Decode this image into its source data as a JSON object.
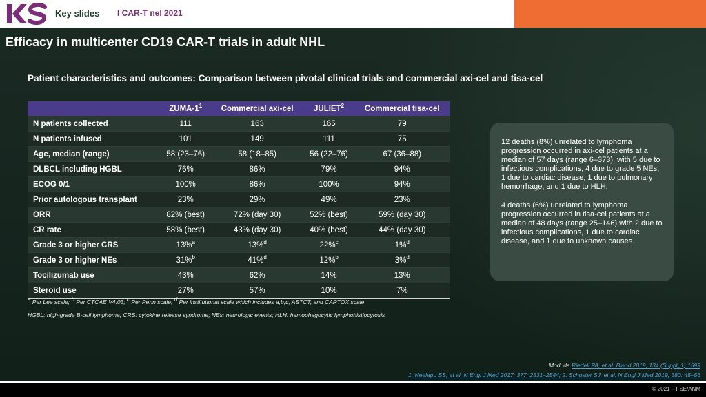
{
  "header": {
    "key_slides": "Key slides",
    "topic": "I CAR-T nel 2021",
    "orange_color": "#ef6c32"
  },
  "title": "Efficacy in multicenter CD19 CAR-T trials in adult NHL",
  "section_title": "Patient characteristics and outcomes: Comparison between pivotal clinical trials and commercial axi-cel and tisa-cel",
  "table": {
    "columns": [
      {
        "text": "",
        "sup": ""
      },
      {
        "text": "ZUMA-1",
        "sup": "1"
      },
      {
        "text": "Commercial axi-cel",
        "sup": ""
      },
      {
        "text": "JULIET",
        "sup": "2"
      },
      {
        "text": "Commercial tisa-cel",
        "sup": ""
      }
    ],
    "rows": [
      {
        "label": "N patients collected",
        "cells": [
          {
            "v": "111",
            "s": ""
          },
          {
            "v": "163",
            "s": ""
          },
          {
            "v": "165",
            "s": ""
          },
          {
            "v": "79",
            "s": ""
          }
        ]
      },
      {
        "label": "N patients infused",
        "cells": [
          {
            "v": "101",
            "s": ""
          },
          {
            "v": "149",
            "s": ""
          },
          {
            "v": "111",
            "s": ""
          },
          {
            "v": "75",
            "s": ""
          }
        ]
      },
      {
        "label": "Age, median (range)",
        "cells": [
          {
            "v": "58 (23–76)",
            "s": ""
          },
          {
            "v": "58 (18–85)",
            "s": ""
          },
          {
            "v": "56 (22–76)",
            "s": ""
          },
          {
            "v": "67 (36–88)",
            "s": ""
          }
        ]
      },
      {
        "label": "DLBCL including HGBL",
        "cells": [
          {
            "v": "76%",
            "s": ""
          },
          {
            "v": "86%",
            "s": ""
          },
          {
            "v": "79%",
            "s": ""
          },
          {
            "v": "94%",
            "s": ""
          }
        ]
      },
      {
        "label": "ECOG 0/1",
        "cells": [
          {
            "v": "100%",
            "s": ""
          },
          {
            "v": "86%",
            "s": ""
          },
          {
            "v": "100%",
            "s": ""
          },
          {
            "v": "94%",
            "s": ""
          }
        ]
      },
      {
        "label": "Prior autologous transplant",
        "cells": [
          {
            "v": "23%",
            "s": ""
          },
          {
            "v": "29%",
            "s": ""
          },
          {
            "v": "49%",
            "s": ""
          },
          {
            "v": "23%",
            "s": ""
          }
        ]
      },
      {
        "label": "ORR",
        "cells": [
          {
            "v": "82% (best)",
            "s": ""
          },
          {
            "v": "72% (day 30)",
            "s": ""
          },
          {
            "v": "52% (best)",
            "s": ""
          },
          {
            "v": "59% (day 30)",
            "s": ""
          }
        ]
      },
      {
        "label": "CR rate",
        "cells": [
          {
            "v": "58% (best)",
            "s": ""
          },
          {
            "v": "43% (day 30)",
            "s": ""
          },
          {
            "v": "40% (best)",
            "s": ""
          },
          {
            "v": "44% (day 30)",
            "s": ""
          }
        ]
      },
      {
        "label": "Grade 3 or higher CRS",
        "cells": [
          {
            "v": "13%",
            "s": "a"
          },
          {
            "v": "13%",
            "s": "d"
          },
          {
            "v": "22%",
            "s": "c"
          },
          {
            "v": "1%",
            "s": "d"
          }
        ]
      },
      {
        "label": "Grade 3 or higher NEs",
        "cells": [
          {
            "v": "31%",
            "s": "b"
          },
          {
            "v": "41%",
            "s": "d"
          },
          {
            "v": "12%",
            "s": "b"
          },
          {
            "v": "3%",
            "s": "d"
          }
        ]
      },
      {
        "label": "Tocilizumab use",
        "cells": [
          {
            "v": "43%",
            "s": ""
          },
          {
            "v": "62%",
            "s": ""
          },
          {
            "v": "14%",
            "s": ""
          },
          {
            "v": "13%",
            "s": ""
          }
        ]
      },
      {
        "label": "Steroid use",
        "cells": [
          {
            "v": "27%",
            "s": ""
          },
          {
            "v": "57%",
            "s": ""
          },
          {
            "v": "10%",
            "s": ""
          },
          {
            "v": "7%",
            "s": ""
          }
        ]
      }
    ]
  },
  "footnotes": {
    "scales": [
      {
        "sup": "a",
        "text": " Per Lee scale; "
      },
      {
        "sup": "b",
        "text": " Per CTCAE V4.03; "
      },
      {
        "sup": "c",
        "text": " Per Penn scale; "
      },
      {
        "sup": "d",
        "text": " Per institutional scale which includes a,b,c, ASTCT, and CARTOX scale"
      }
    ],
    "abbreviations": "HGBL: high-grade B-cell lymphoma; CRS: cytokine release syndrome; NEs: neurologic events; HLH: hemophagocytic lymphohistiocytosis"
  },
  "infobox": {
    "para1": "12 deaths (8%) unrelated to lymphoma progression occurred in axi-cel patients at a median of 57 days (range 6–373), with 5 due to infectious complications, 4 due to grade 5 NEs, 1 due to cardiac disease, 1 due to pulmonary hemorrhage, and 1 due to HLH.",
    "para2": "4 deaths (6%) unrelated to lymphoma progression occurred in tisa-cel patients at a median of 48 days (range 25–146) with 2 due to infectious complications, 1 due to cardiac disease, and 1 due to unknown causes."
  },
  "references": {
    "mod_prefix": "Mod. da ",
    "mod_link": "Riedell PA, et al. Blood 2019; 134 (Suppl_1):1599",
    "line2_a": "1. Neelapu SS, et al. N Engl J Med 2017; 377: 2531–2544;",
    "line2_b": " 2. Schuster SJ, et al. N Engl J Med 2019; 380: 45–56"
  },
  "copyright": "© 2021 – FSE/ANM",
  "colors": {
    "table_header": "#4a3c8a",
    "link": "#4fa3d8",
    "logo_purple": "#7b2d7a"
  }
}
